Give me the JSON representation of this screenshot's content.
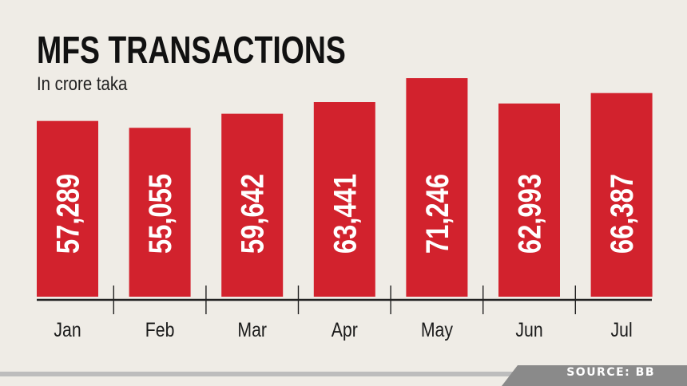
{
  "title": "MFS TRANSACTIONS",
  "subtitle": "In crore taka",
  "source": "SOURCE: BB",
  "colors": {
    "bar": "#d2222d",
    "background": "#efece6",
    "axis": "#222222",
    "footer_light": "#bdbdbd",
    "footer_dark": "#8a8a8a"
  },
  "chart_data": {
    "type": "bar",
    "title": "MFS TRANSACTIONS",
    "subtitle": "In crore taka",
    "categories": [
      "Jan",
      "Feb",
      "Mar",
      "Apr",
      "May",
      "Jun",
      "Jul"
    ],
    "values": [
      57289,
      55055,
      59642,
      63441,
      71246,
      62993,
      66387
    ],
    "value_labels": [
      "57,289",
      "55,055",
      "59,642",
      "63,441",
      "71,246",
      "62,993",
      "66,387"
    ],
    "xlabel": "",
    "ylabel": "",
    "grid": false,
    "legend": "none"
  }
}
